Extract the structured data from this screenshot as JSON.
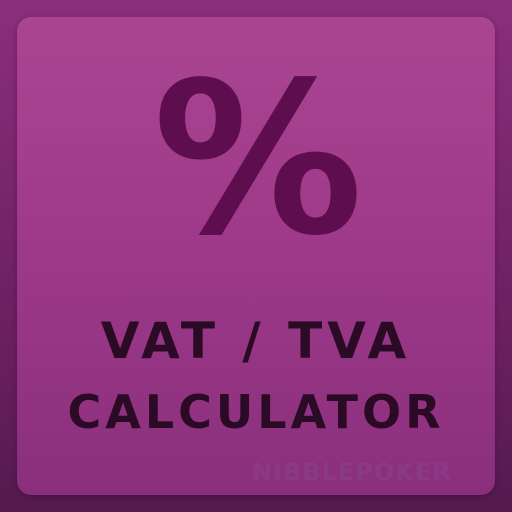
{
  "icon": {
    "glyph": "%",
    "title_line_1": "VAT / TVA",
    "title_line_2": "CALCULATOR",
    "brand": "NIBBLEPOKER"
  },
  "colors": {
    "background": "#6e2063",
    "tile": "#9e3a89",
    "glyph": "#5e0e4e",
    "title_text": "#2a0a25",
    "brand_text": "#8a3a84"
  }
}
